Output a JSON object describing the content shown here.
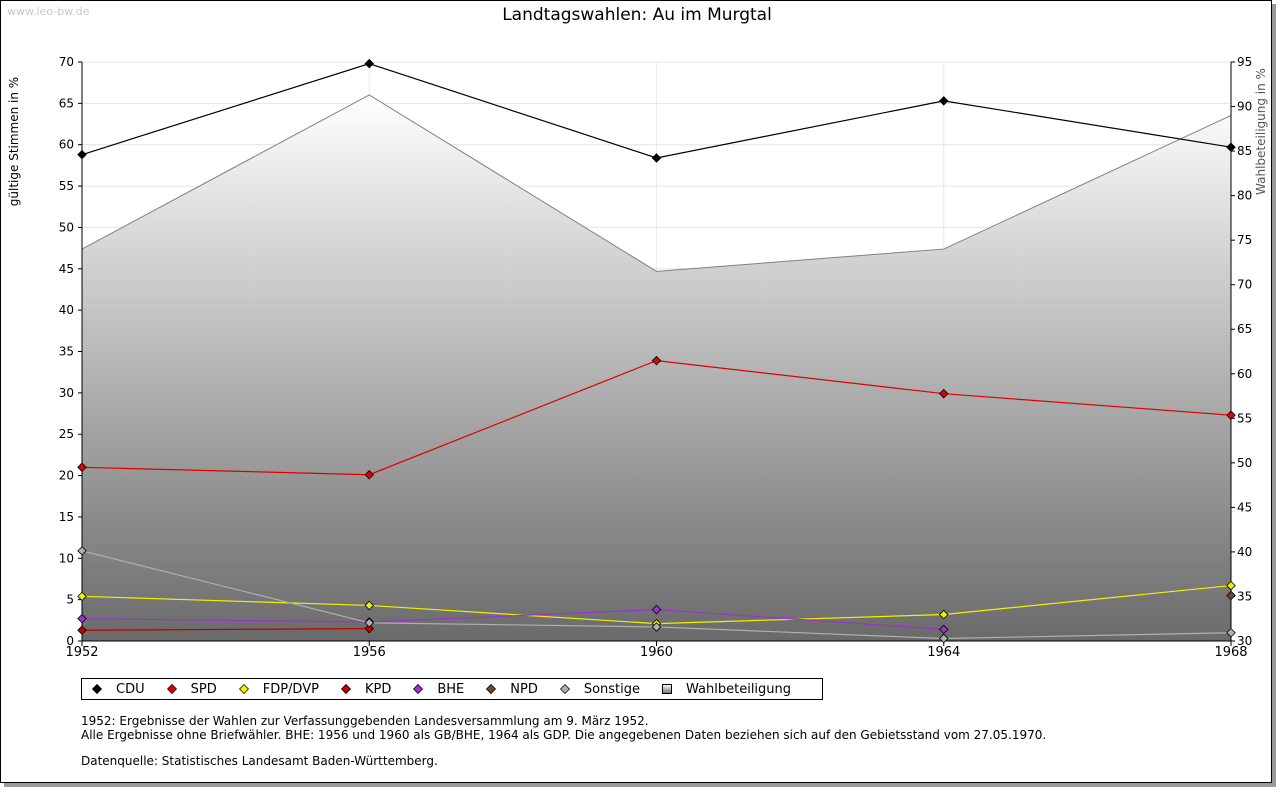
{
  "watermark": "www.leo-bw.de",
  "title": "Landtagswahlen: Au im Murgtal",
  "chart_data": {
    "type": "line",
    "x": [
      1952,
      1956,
      1960,
      1964,
      1968
    ],
    "xticks": [
      "1952",
      "1956",
      "1960",
      "1964",
      "1968"
    ],
    "ylabel": "gültige Stimmen in %",
    "ylim": [
      0,
      70
    ],
    "yticks": [
      0,
      5,
      10,
      15,
      20,
      25,
      30,
      35,
      40,
      45,
      50,
      55,
      60,
      65,
      70
    ],
    "y2label": "Wahlbeteiligung in %",
    "y2lim": [
      30,
      95
    ],
    "y2ticks": [
      30,
      35,
      40,
      45,
      50,
      55,
      60,
      65,
      70,
      75,
      80,
      85,
      90,
      95
    ],
    "grid": true,
    "legend_position": "bottom",
    "series": [
      {
        "name": "CDU",
        "color": "#000000",
        "values": [
          58.8,
          69.8,
          58.4,
          65.3,
          59.7
        ]
      },
      {
        "name": "SPD",
        "color": "#e00000",
        "values": [
          21.0,
          20.1,
          33.9,
          29.9,
          27.3
        ]
      },
      {
        "name": "FDP/DVP",
        "color": "#f0f000",
        "values": [
          5.4,
          4.3,
          2.1,
          3.2,
          6.7
        ]
      },
      {
        "name": "KPD",
        "color": "#c00000",
        "values": [
          1.3,
          1.5,
          null,
          null,
          null
        ]
      },
      {
        "name": "BHE",
        "color": "#9933cc",
        "values": [
          2.7,
          2.3,
          3.8,
          1.4,
          null
        ]
      },
      {
        "name": "NPD",
        "color": "#6b4a2a",
        "values": [
          null,
          null,
          null,
          null,
          5.5
        ]
      },
      {
        "name": "Sonstige",
        "color": "#b0b0b0",
        "values": [
          10.9,
          2.2,
          1.7,
          0.3,
          1.0
        ]
      }
    ],
    "turnout": {
      "name": "Wahlbeteiligung",
      "axis": "right",
      "values": [
        74.0,
        91.3,
        71.5,
        74.0,
        89.0
      ]
    }
  },
  "notes": [
    "1952: Ergebnisse der Wahlen zur Verfassunggebenden Landesversammlung am 9. März 1952.",
    "Alle Ergebnisse ohne Briefwähler. BHE: 1956 und 1960 als GB/BHE, 1964 als GDP. Die angegebenen Daten beziehen sich auf den Gebietsstand vom 27.05.1970."
  ],
  "source": "Datenquelle: Statistisches Landesamt Baden-Württemberg."
}
